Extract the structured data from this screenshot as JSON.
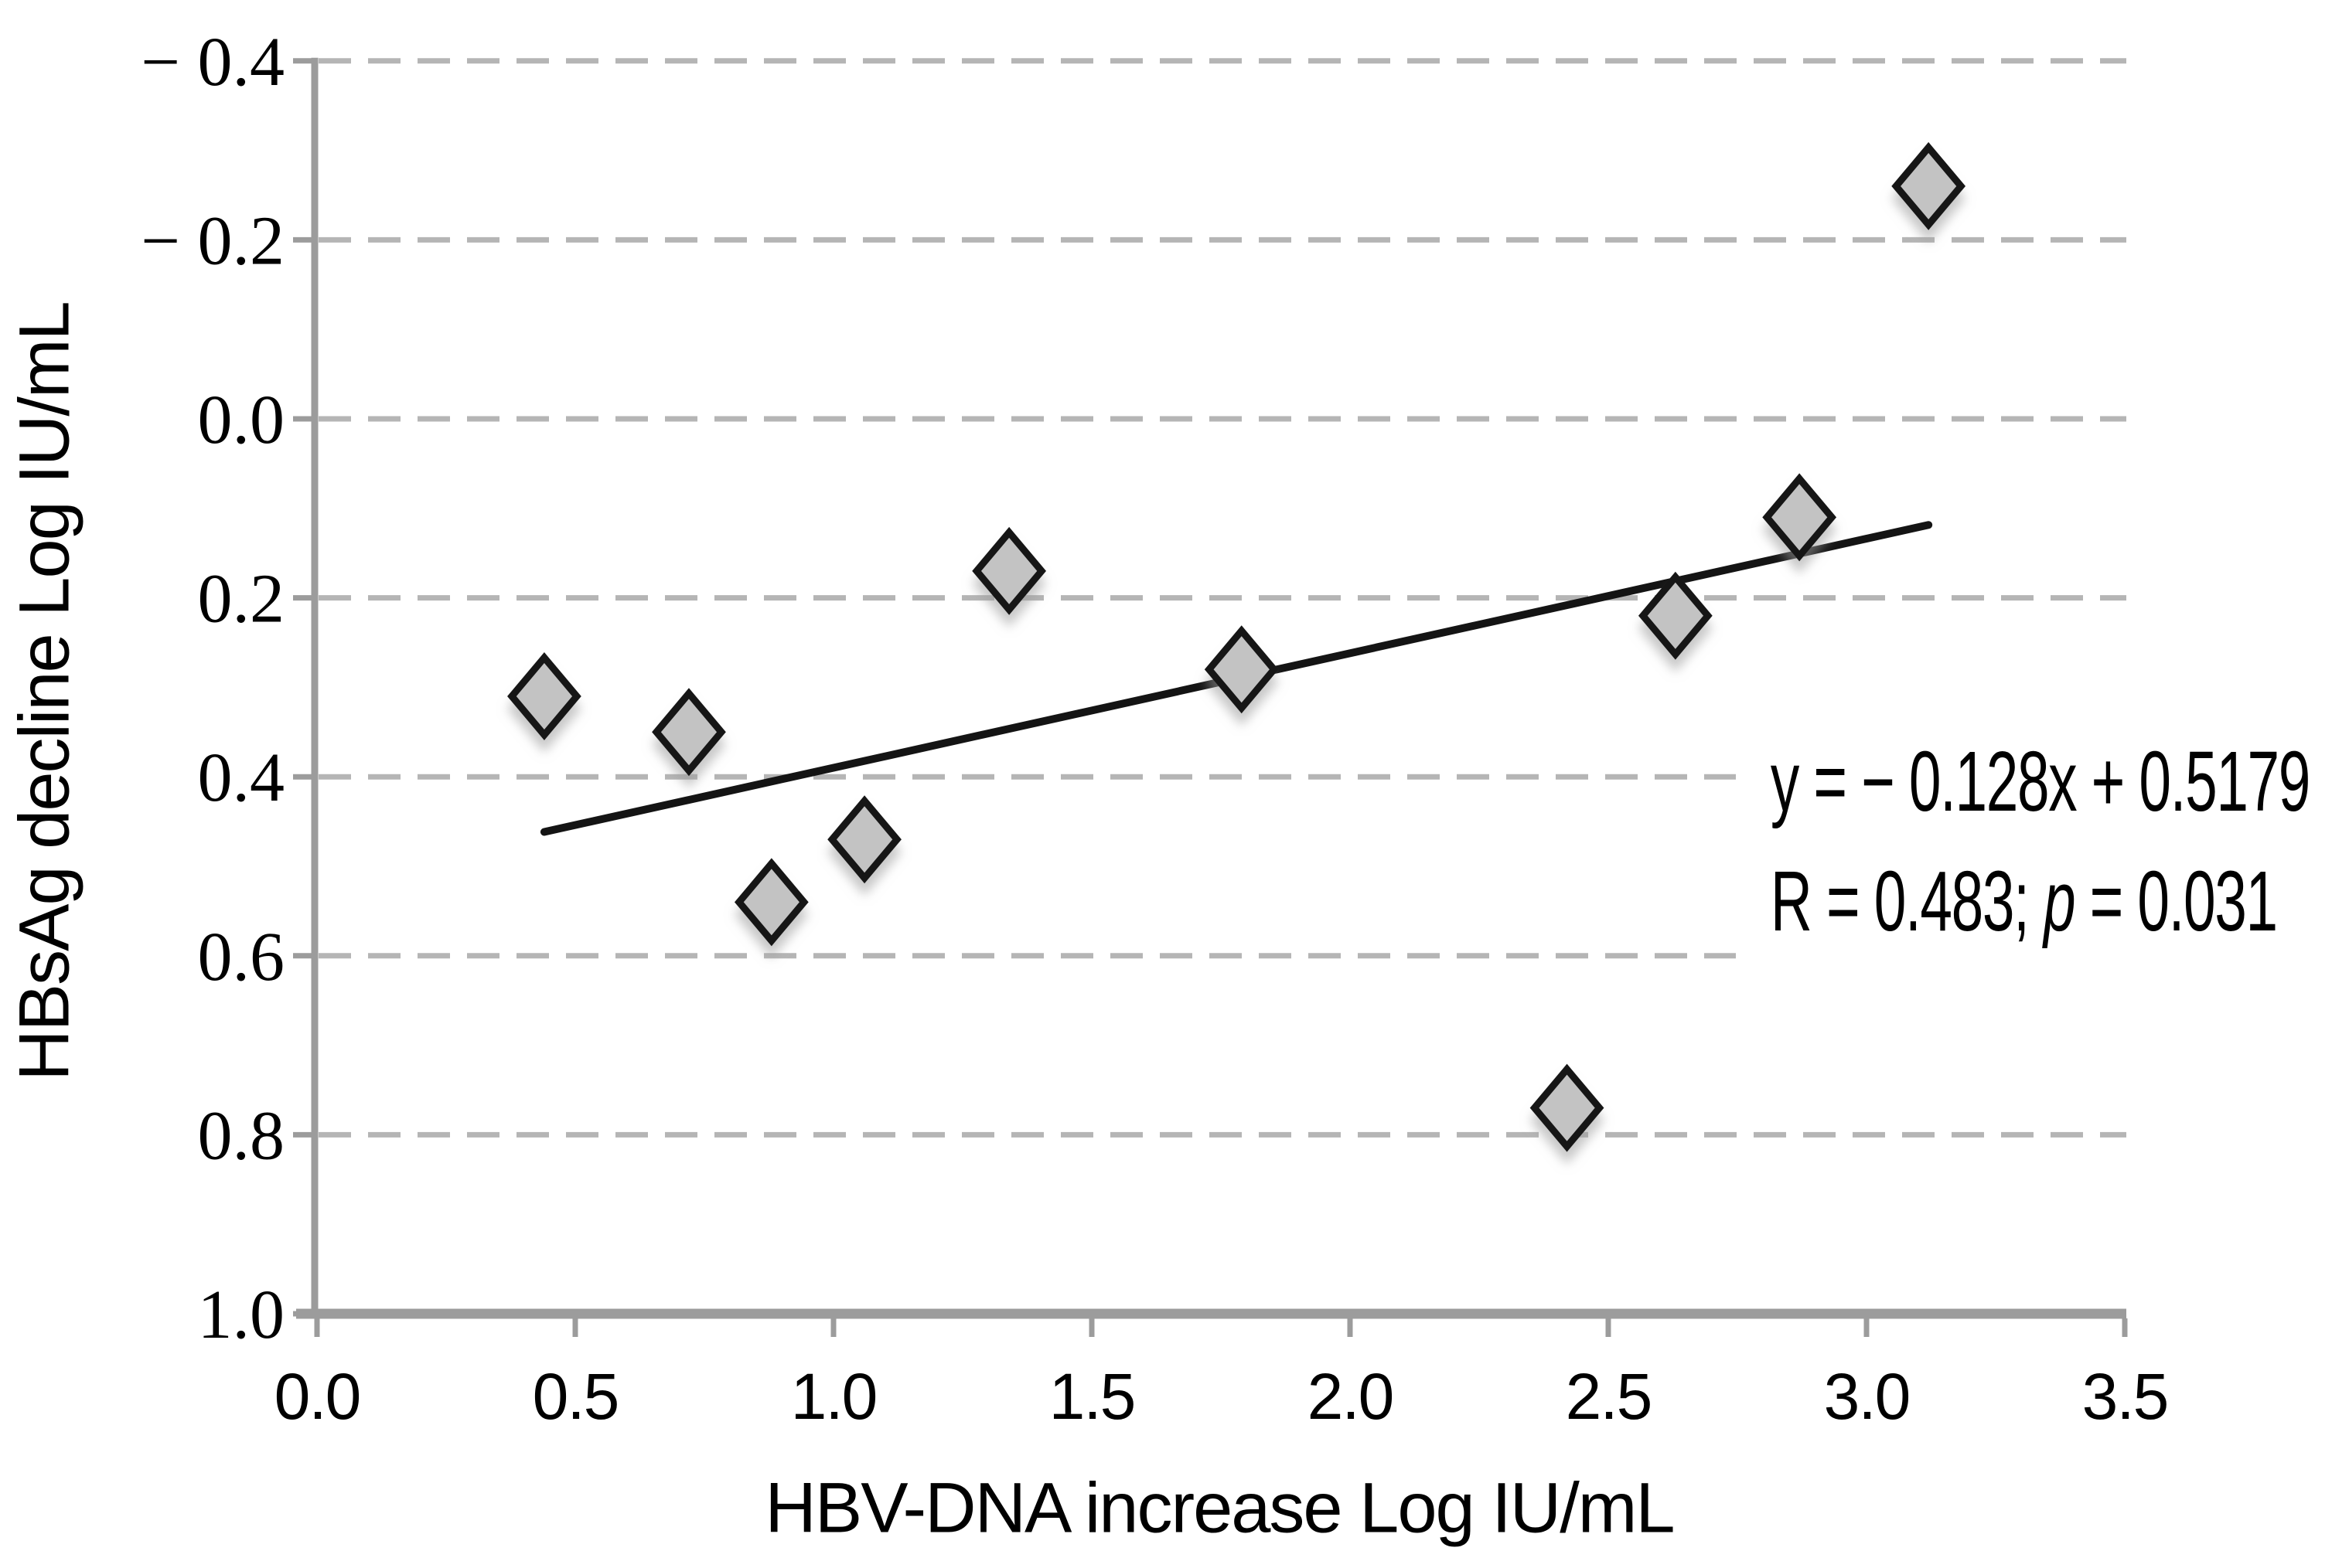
{
  "chart_data": {
    "type": "scatter",
    "title": "",
    "xlabel": "HBV-DNA increase Log IU/mL",
    "ylabel": "HBsAg decline Log IU/mL",
    "xlim": [
      0.0,
      3.5
    ],
    "ylim": [
      -0.4,
      1.0
    ],
    "y_axis_inverted": true,
    "grid": "horizontal dashed",
    "legend": "none",
    "x_ticks": {
      "values": [
        0.0,
        0.5,
        1.0,
        1.5,
        2.0,
        2.5,
        3.0,
        3.5
      ],
      "labels": [
        "0.0",
        "0.5",
        "1.0",
        "1.5",
        "2.0",
        "2.5",
        "3.0",
        "3.5"
      ]
    },
    "y_ticks": {
      "values": [
        -0.4,
        -0.2,
        0.0,
        0.2,
        0.4,
        0.6,
        0.8,
        1.0
      ],
      "labels": [
        "− 0.4",
        "− 0.2",
        "0.0",
        "0.2",
        "0.4",
        "0.6",
        "0.8",
        "1.0"
      ]
    },
    "points": [
      {
        "x": 0.44,
        "y": 0.31
      },
      {
        "x": 0.72,
        "y": 0.35
      },
      {
        "x": 0.88,
        "y": 0.54
      },
      {
        "x": 1.06,
        "y": 0.47
      },
      {
        "x": 1.34,
        "y": 0.17
      },
      {
        "x": 1.79,
        "y": 0.28
      },
      {
        "x": 2.42,
        "y": 0.77
      },
      {
        "x": 2.63,
        "y": 0.22
      },
      {
        "x": 2.87,
        "y": 0.11
      },
      {
        "x": 3.12,
        "y": -0.26
      }
    ],
    "trendline": {
      "slope": -0.128,
      "intercept": 0.5179,
      "x_start": 0.44,
      "x_end": 3.12
    },
    "annotation": {
      "equation": "y = − 0.128x + 0.5179",
      "r_prefix": "R = 0.483; ",
      "r_italic": "p",
      "r_suffix": " = 0.031"
    },
    "marker": {
      "shape": "diamond",
      "fill": "#c3c3c3",
      "stroke": "#141414"
    },
    "colors": {
      "gridline": "#b5b5b5",
      "axis": "#9c9c9c",
      "trendline": "#141414",
      "text": "#000000"
    }
  }
}
